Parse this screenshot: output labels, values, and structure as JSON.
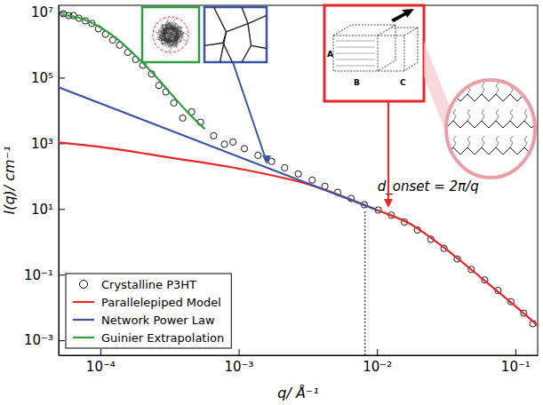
{
  "chart_data": {
    "type": "line",
    "log": true,
    "grid": false,
    "legend": "bottom-left",
    "xlabel": "q/ Å⁻¹",
    "ylabel": "I(q)/ cm⁻¹",
    "xlim": [
      5e-05,
      0.145
    ],
    "ylim": [
      0.00035,
      16000000.0
    ],
    "xticks": [
      {
        "value": 0.0001,
        "label": "10⁻⁴"
      },
      {
        "value": 0.001,
        "label": "10⁻³"
      },
      {
        "value": 0.01,
        "label": "10⁻²"
      },
      {
        "value": 0.1,
        "label": "10⁻¹"
      }
    ],
    "yticks": [
      {
        "value": 0.001,
        "label": "10⁻³"
      },
      {
        "value": 0.1,
        "label": "10⁻¹"
      },
      {
        "value": 10,
        "label": "10¹"
      },
      {
        "value": 1000,
        "label": "10³"
      },
      {
        "value": 100000,
        "label": "10⁵"
      },
      {
        "value": 10000000,
        "label": "10⁷"
      }
    ],
    "series": [
      {
        "name": "Crystalline P3HT",
        "type": "scatter",
        "marker": "circle",
        "color": "#000000",
        "x": [
          5.4e-05,
          5.9e-05,
          6.4e-05,
          7e-05,
          7.8e-05,
          8.7e-05,
          9.7e-05,
          0.000109,
          0.000123,
          0.000138,
          0.000158,
          0.00018,
          0.000203,
          0.000235,
          0.000265,
          0.000298,
          0.00034,
          0.000394,
          0.000457,
          0.00053,
          0.00066,
          0.00079,
          0.00091,
          0.0011,
          0.00138,
          0.00173,
          0.00215,
          0.0027,
          0.0034,
          0.0042,
          0.0052,
          0.0065,
          0.0081,
          0.0102,
          0.0127,
          0.0158,
          0.0196,
          0.0245,
          0.0305,
          0.038,
          0.048,
          0.06,
          0.075,
          0.093,
          0.115,
          0.134
        ],
        "values": [
          8900000.0,
          7800000.0,
          7800000.0,
          6500000.0,
          5400000.0,
          4500000.0,
          3100000.0,
          2100000.0,
          1400000.0,
          980000.0,
          590000.0,
          360000.0,
          240000.0,
          130000.0,
          58000.0,
          37000.0,
          17000.0,
          5900,
          9100,
          4400,
          1700,
          940,
          1100,
          690,
          430,
          280,
          180,
          117,
          76,
          49,
          32,
          21,
          13.5,
          9.3,
          6.5,
          4.0,
          2.3,
          1.2,
          0.63,
          0.3,
          0.145,
          0.069,
          0.033,
          0.015,
          0.0067,
          0.0032
        ]
      },
      {
        "name": "Parallelepiped Model",
        "type": "line",
        "line_style": "solid",
        "color": "#e8262a",
        "x": [
          5e-05,
          0.0001,
          0.000316,
          0.001,
          0.0034,
          0.01,
          0.017,
          0.031,
          0.055,
          0.1,
          0.145
        ],
        "values": [
          1070,
          780,
          370,
          170,
          52,
          9.3,
          3.7,
          0.63,
          0.089,
          0.011,
          0.0028
        ]
      },
      {
        "name": "Network Power Law",
        "type": "line",
        "line_style": "solid",
        "color": "#3a53a4",
        "x": [
          5e-05,
          0.01
        ],
        "values": [
          51000,
          9.3
        ]
      },
      {
        "name": "Guinier Extrapolation",
        "type": "line",
        "line_style": "solid",
        "color": "#2e9e3e",
        "x": [
          5.2e-05,
          7.2e-05,
          9.7e-05,
          0.00013,
          0.000175,
          0.000235,
          0.000316,
          0.000425,
          0.00057
        ],
        "values": [
          8300000.0,
          6500000.0,
          3700000.0,
          1600000.0,
          520000.0,
          150000.0,
          37000.0,
          9100,
          2700
        ]
      }
    ],
    "annotations": [
      {
        "text": "d_onset = 2π/q",
        "x": 0.0082,
        "y": 9
      }
    ],
    "inset_labels": [
      "A",
      "B",
      "C"
    ]
  }
}
